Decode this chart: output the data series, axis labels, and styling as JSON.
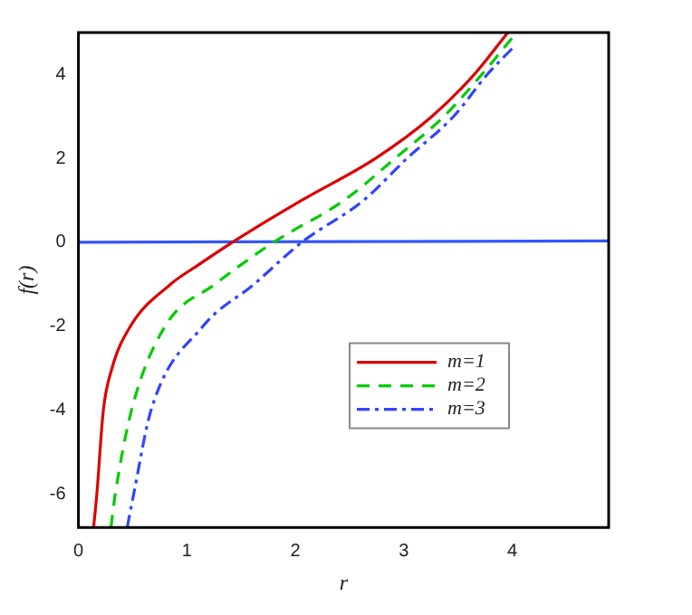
{
  "chart_data": {
    "type": "line",
    "xlabel": "r",
    "ylabel": "f(r)",
    "xlim": [
      0,
      4.89
    ],
    "ylim": [
      -6.8,
      5
    ],
    "xticks": [
      0,
      1,
      2,
      3,
      4
    ],
    "yticks": [
      -6,
      -4,
      -2,
      0,
      2,
      4
    ],
    "grid": false,
    "legend": "right",
    "marker": "none",
    "series": [
      {
        "name": "m=1",
        "color": "#dd0000",
        "line_style": "solid",
        "x": [
          0.14,
          0.17,
          0.23,
          0.31,
          0.48,
          0.85,
          1.1,
          1.42,
          2.06,
          2.74,
          3.26,
          3.65,
          3.96
        ],
        "values": [
          -6.8,
          -6,
          -4,
          -3,
          -2,
          -1,
          -0.55,
          0,
          1,
          2,
          3,
          4,
          5
        ]
      },
      {
        "name": "m=2",
        "color": "#00cc00",
        "line_style": "dashed",
        "x": [
          0.3,
          0.34,
          0.49,
          0.8,
          1.26,
          1.8,
          2.45,
          2.92,
          3.37,
          3.72,
          4.0
        ],
        "values": [
          -6.8,
          -6,
          -4,
          -2,
          -1,
          0,
          1,
          2,
          3,
          4,
          4.87
        ]
      },
      {
        "name": "m=3",
        "color": "#3344ff",
        "line_style": "dashdot",
        "x": [
          0.45,
          0.51,
          0.67,
          1.15,
          1.62,
          2.06,
          2.63,
          3.03,
          3.46,
          3.77,
          4.0
        ],
        "values": [
          -6.8,
          -6,
          -4,
          -2,
          -1,
          0,
          1,
          2,
          3,
          4,
          4.62
        ]
      },
      {
        "color": "#3355ff",
        "line_style": "solid",
        "x": [
          0,
          4.89
        ],
        "values": [
          0,
          0.03
        ]
      }
    ]
  }
}
